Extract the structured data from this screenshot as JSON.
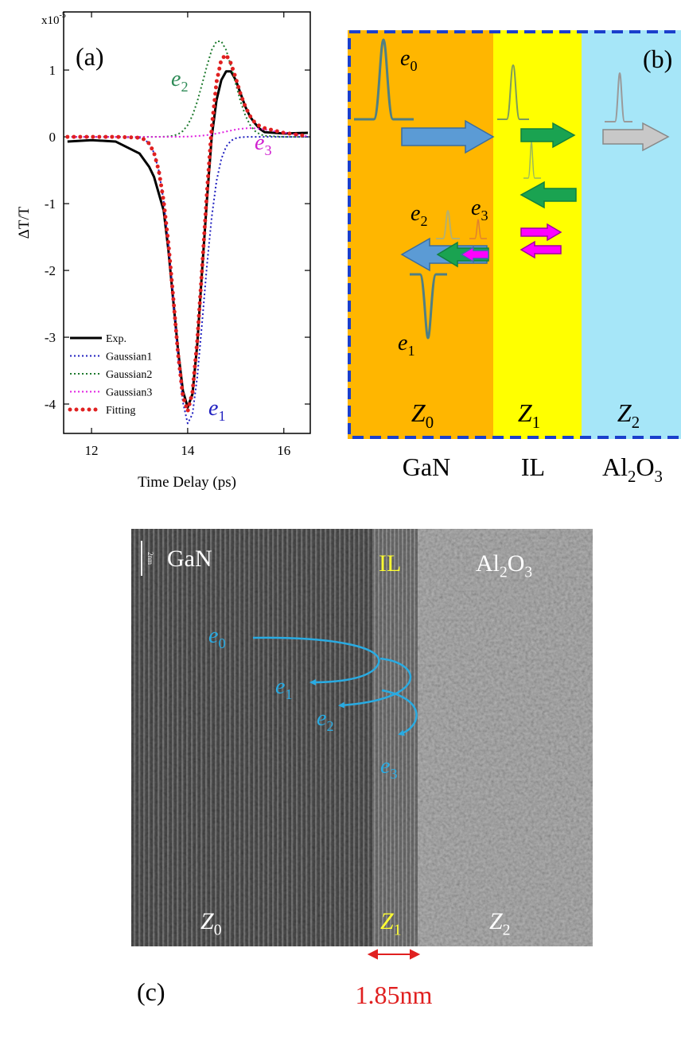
{
  "chart_data": {
    "type": "line",
    "panel_label": "(a)",
    "x_label": "Time Delay (ps)",
    "y_label": "ΔT/T",
    "y_multiplier": {
      "base": "x10",
      "exponent": "-5"
    },
    "xlim": [
      11.42,
      16.55
    ],
    "ylim": [
      -4.44,
      1.87
    ],
    "xticks": [
      12,
      14,
      16
    ],
    "yticks": [
      -4,
      -3,
      -2,
      -1,
      0,
      1
    ],
    "grid": false,
    "legend": "lower left",
    "x": [
      11.5,
      12,
      12.5,
      13,
      13.1,
      13.2,
      13.3,
      13.4,
      13.5,
      13.6,
      13.7,
      13.8,
      13.9,
      14,
      14.1,
      14.2,
      14.3,
      14.4,
      14.5,
      14.6,
      14.7,
      14.8,
      14.9,
      15,
      15.1,
      15.2,
      15.3,
      15.4,
      15.5,
      15.6,
      16,
      16.5
    ],
    "series": [
      {
        "name": "Exp.",
        "color": "#000000",
        "style": "solid",
        "values": [
          -0.07,
          -0.05,
          -0.07,
          -0.25,
          -0.35,
          -0.45,
          -0.6,
          -0.85,
          -1.1,
          -1.7,
          -2.45,
          -3.2,
          -3.8,
          -4.05,
          -3.85,
          -3.1,
          -2.0,
          -0.95,
          0.0,
          0.55,
          0.85,
          0.98,
          0.98,
          0.85,
          0.65,
          0.45,
          0.3,
          0.2,
          0.12,
          0.07,
          0.05,
          0.06
        ]
      },
      {
        "name": "Gaussian1",
        "color": "#1f1fbf",
        "style": "dotted",
        "values": [
          0,
          0,
          0,
          -0.013,
          -0.039,
          -0.1,
          -0.24,
          -0.51,
          -0.96,
          -1.61,
          -2.43,
          -3.29,
          -3.97,
          -4.29,
          -4.15,
          -3.59,
          -2.78,
          -1.93,
          -1.2,
          -0.66,
          -0.33,
          -0.146,
          -0.058,
          -0.021,
          -0.007,
          -0.002,
          0,
          0,
          0,
          0,
          0,
          0
        ]
      },
      {
        "name": "Gaussian2",
        "color": "#1e7a2e",
        "style": "dotted",
        "values": [
          0,
          0,
          0,
          0,
          0,
          0,
          0,
          0.001,
          0.002,
          0.006,
          0.016,
          0.039,
          0.087,
          0.175,
          0.32,
          0.53,
          0.79,
          1.06,
          1.3,
          1.43,
          1.43,
          1.3,
          1.06,
          0.79,
          0.53,
          0.32,
          0.175,
          0.087,
          0.039,
          0.016,
          0,
          0
        ]
      },
      {
        "name": "Gaussian3",
        "color": "#e020e0",
        "style": "dotted",
        "values": [
          0,
          0,
          0,
          0,
          0,
          0,
          0,
          0,
          0,
          0,
          0.001,
          0.001,
          0.003,
          0.004,
          0.007,
          0.012,
          0.018,
          0.026,
          0.036,
          0.049,
          0.063,
          0.079,
          0.094,
          0.109,
          0.12,
          0.127,
          0.13,
          0.127,
          0.12,
          0.109,
          0.063,
          0.007
        ]
      },
      {
        "name": "Fitting",
        "color": "#e02020",
        "style": "dots",
        "values": [
          0,
          0,
          0,
          -0.013,
          -0.039,
          -0.1,
          -0.24,
          -0.51,
          -0.96,
          -1.6,
          -2.41,
          -3.25,
          -3.88,
          -4.11,
          -3.82,
          -3.05,
          -1.97,
          -0.84,
          0.14,
          0.82,
          1.16,
          1.23,
          1.1,
          0.88,
          0.64,
          0.45,
          0.31,
          0.21,
          0.16,
          0.13,
          0.06,
          0.01
        ]
      }
    ],
    "annotations": [
      {
        "parts": [
          "e",
          "2"
        ],
        "color": "#2e8b57"
      },
      {
        "parts": [
          "e",
          "3"
        ],
        "color": "#d020d0"
      },
      {
        "parts": [
          "e",
          "1"
        ],
        "color": "#2020c0"
      }
    ]
  },
  "diagram": {
    "panel_label": "(b)",
    "electrons": [
      {
        "parts": [
          "e",
          "0"
        ]
      },
      {
        "parts": [
          "e",
          "2"
        ]
      },
      {
        "parts": [
          "e",
          "3"
        ]
      },
      {
        "parts": [
          "e",
          "1"
        ]
      }
    ],
    "zones": [
      {
        "parts": [
          "Z",
          "0"
        ]
      },
      {
        "parts": [
          "Z",
          "1"
        ]
      },
      {
        "parts": [
          "Z",
          "2"
        ]
      }
    ],
    "layers": [
      {
        "parts": [
          "GaN"
        ]
      },
      {
        "parts": [
          "IL"
        ]
      },
      {
        "parts": [
          "Al",
          "2",
          "O",
          "3"
        ]
      }
    ]
  },
  "micrograph": {
    "panel_label": "(c)",
    "scale_bar": "2nm",
    "thickness": "1.85nm",
    "layers": [
      {
        "parts": [
          "GaN"
        ]
      },
      {
        "parts": [
          "IL"
        ]
      },
      {
        "parts": [
          "Al",
          "2",
          "O",
          "3"
        ]
      }
    ],
    "electrons": [
      {
        "parts": [
          "e",
          "0"
        ]
      },
      {
        "parts": [
          "e",
          "1"
        ]
      },
      {
        "parts": [
          "e",
          "2"
        ]
      },
      {
        "parts": [
          "e",
          "3"
        ]
      }
    ],
    "zones": [
      {
        "parts": [
          "Z",
          "0"
        ]
      },
      {
        "parts": [
          "Z",
          "1"
        ]
      },
      {
        "parts": [
          "Z",
          "2"
        ]
      }
    ]
  }
}
